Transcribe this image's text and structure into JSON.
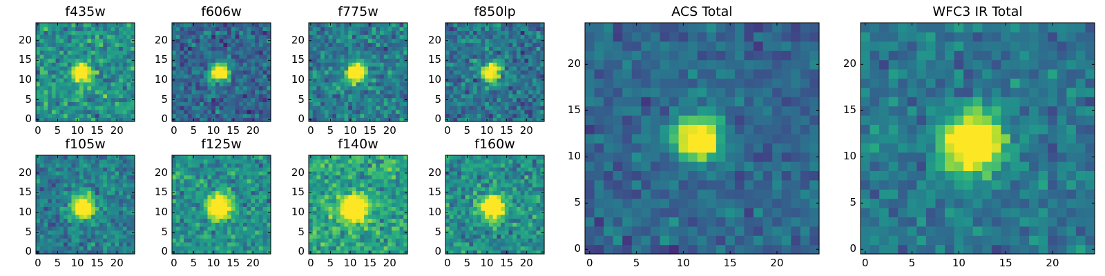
{
  "colormap": [
    "#440154",
    "#472d7b",
    "#3b528b",
    "#2c728e",
    "#21918c",
    "#28ae80",
    "#5ec962",
    "#addc30",
    "#fde725"
  ],
  "chart_data": [
    {
      "type": "heatmap",
      "title": "f435w",
      "grid_size": 25,
      "xlim": [
        0,
        25
      ],
      "ylim": [
        0,
        25
      ],
      "xticks": [
        "0",
        "5",
        "10",
        "15",
        "20"
      ],
      "yticks": [
        "0",
        "5",
        "10",
        "15",
        "20"
      ],
      "source": {
        "x": 11.5,
        "y": 12.5,
        "peak": 1.0,
        "sigma": 1.6
      },
      "background": {
        "mean": 0.5,
        "noise": 0.16,
        "seed": 11
      },
      "grid_on": false
    },
    {
      "type": "heatmap",
      "title": "f606w",
      "grid_size": 25,
      "xlim": [
        0,
        25
      ],
      "ylim": [
        0,
        25
      ],
      "xticks": [
        "0",
        "5",
        "10",
        "15",
        "20"
      ],
      "yticks": [
        "0",
        "5",
        "10",
        "15",
        "20"
      ],
      "source": {
        "x": 12,
        "y": 12.5,
        "peak": 1.0,
        "sigma": 1.6
      },
      "background": {
        "mean": 0.33,
        "noise": 0.14,
        "seed": 23
      },
      "grid_on": false
    },
    {
      "type": "heatmap",
      "title": "f775w",
      "grid_size": 25,
      "xlim": [
        0,
        25
      ],
      "ylim": [
        0,
        25
      ],
      "xticks": [
        "0",
        "5",
        "10",
        "15",
        "20"
      ],
      "yticks": [
        "0",
        "5",
        "10",
        "15",
        "20"
      ],
      "source": {
        "x": 12,
        "y": 12.5,
        "peak": 1.0,
        "sigma": 1.7
      },
      "background": {
        "mean": 0.42,
        "noise": 0.15,
        "seed": 37
      },
      "grid_on": false
    },
    {
      "type": "heatmap",
      "title": "f850lp",
      "grid_size": 25,
      "xlim": [
        0,
        25
      ],
      "ylim": [
        0,
        25
      ],
      "xticks": [
        "0",
        "5",
        "10",
        "15",
        "20"
      ],
      "yticks": [
        "0",
        "5",
        "10",
        "15",
        "20"
      ],
      "source": {
        "x": 11.5,
        "y": 12.5,
        "peak": 1.0,
        "sigma": 1.6
      },
      "background": {
        "mean": 0.38,
        "noise": 0.15,
        "seed": 41
      },
      "grid_on": false
    },
    {
      "type": "heatmap",
      "title": "f105w",
      "grid_size": 25,
      "xlim": [
        0,
        25
      ],
      "ylim": [
        0,
        25
      ],
      "xticks": [
        "0",
        "5",
        "10",
        "15",
        "20"
      ],
      "yticks": [
        "0",
        "5",
        "10",
        "15",
        "20"
      ],
      "source": {
        "x": 12,
        "y": 12,
        "peak": 1.0,
        "sigma": 2.0
      },
      "background": {
        "mean": 0.42,
        "noise": 0.13,
        "seed": 53
      },
      "grid_on": false
    },
    {
      "type": "heatmap",
      "title": "f125w",
      "grid_size": 25,
      "xlim": [
        0,
        25
      ],
      "ylim": [
        0,
        25
      ],
      "xticks": [
        "0",
        "5",
        "10",
        "15",
        "20"
      ],
      "yticks": [
        "0",
        "5",
        "10",
        "15",
        "20"
      ],
      "source": {
        "x": 12,
        "y": 12,
        "peak": 1.0,
        "sigma": 2.0
      },
      "background": {
        "mean": 0.5,
        "noise": 0.14,
        "seed": 61
      },
      "grid_on": false
    },
    {
      "type": "heatmap",
      "title": "f140w",
      "grid_size": 25,
      "xlim": [
        0,
        25
      ],
      "ylim": [
        0,
        25
      ],
      "xticks": [
        "0",
        "5",
        "10",
        "15",
        "20"
      ],
      "yticks": [
        "0",
        "5",
        "10",
        "15",
        "20"
      ],
      "source": {
        "x": 11.5,
        "y": 11.5,
        "peak": 1.0,
        "sigma": 2.2
      },
      "background": {
        "mean": 0.58,
        "noise": 0.15,
        "seed": 71
      },
      "grid_on": false
    },
    {
      "type": "heatmap",
      "title": "f160w",
      "grid_size": 25,
      "xlim": [
        0,
        25
      ],
      "ylim": [
        0,
        25
      ],
      "xticks": [
        "0",
        "5",
        "10",
        "15",
        "20"
      ],
      "yticks": [
        "0",
        "5",
        "10",
        "15",
        "20"
      ],
      "source": {
        "x": 12,
        "y": 12,
        "peak": 1.0,
        "sigma": 2.0
      },
      "background": {
        "mean": 0.5,
        "noise": 0.15,
        "seed": 83
      },
      "grid_on": false
    },
    {
      "type": "heatmap",
      "title": "ACS Total",
      "grid_size": 25,
      "xlim": [
        0,
        25
      ],
      "ylim": [
        0,
        25
      ],
      "xticks": [
        "0",
        "5",
        "10",
        "15",
        "20"
      ],
      "yticks": [
        "0",
        "5",
        "10",
        "15",
        "20"
      ],
      "source": {
        "x": 12,
        "y": 12.5,
        "peak": 1.0,
        "sigma": 1.6
      },
      "background": {
        "mean": 0.33,
        "noise": 0.1,
        "seed": 97
      },
      "grid_on": false
    },
    {
      "type": "heatmap",
      "title": "WFC3 IR Total",
      "grid_size": 25,
      "xlim": [
        0,
        25
      ],
      "ylim": [
        0,
        25
      ],
      "xticks": [
        "0",
        "5",
        "10",
        "15",
        "20"
      ],
      "yticks": [
        "0",
        "5",
        "10",
        "15",
        "20"
      ],
      "source": {
        "x": 12,
        "y": 12,
        "peak": 1.0,
        "sigma": 2.2
      },
      "background": {
        "mean": 0.4,
        "noise": 0.11,
        "seed": 101
      },
      "grid_on": false
    }
  ]
}
